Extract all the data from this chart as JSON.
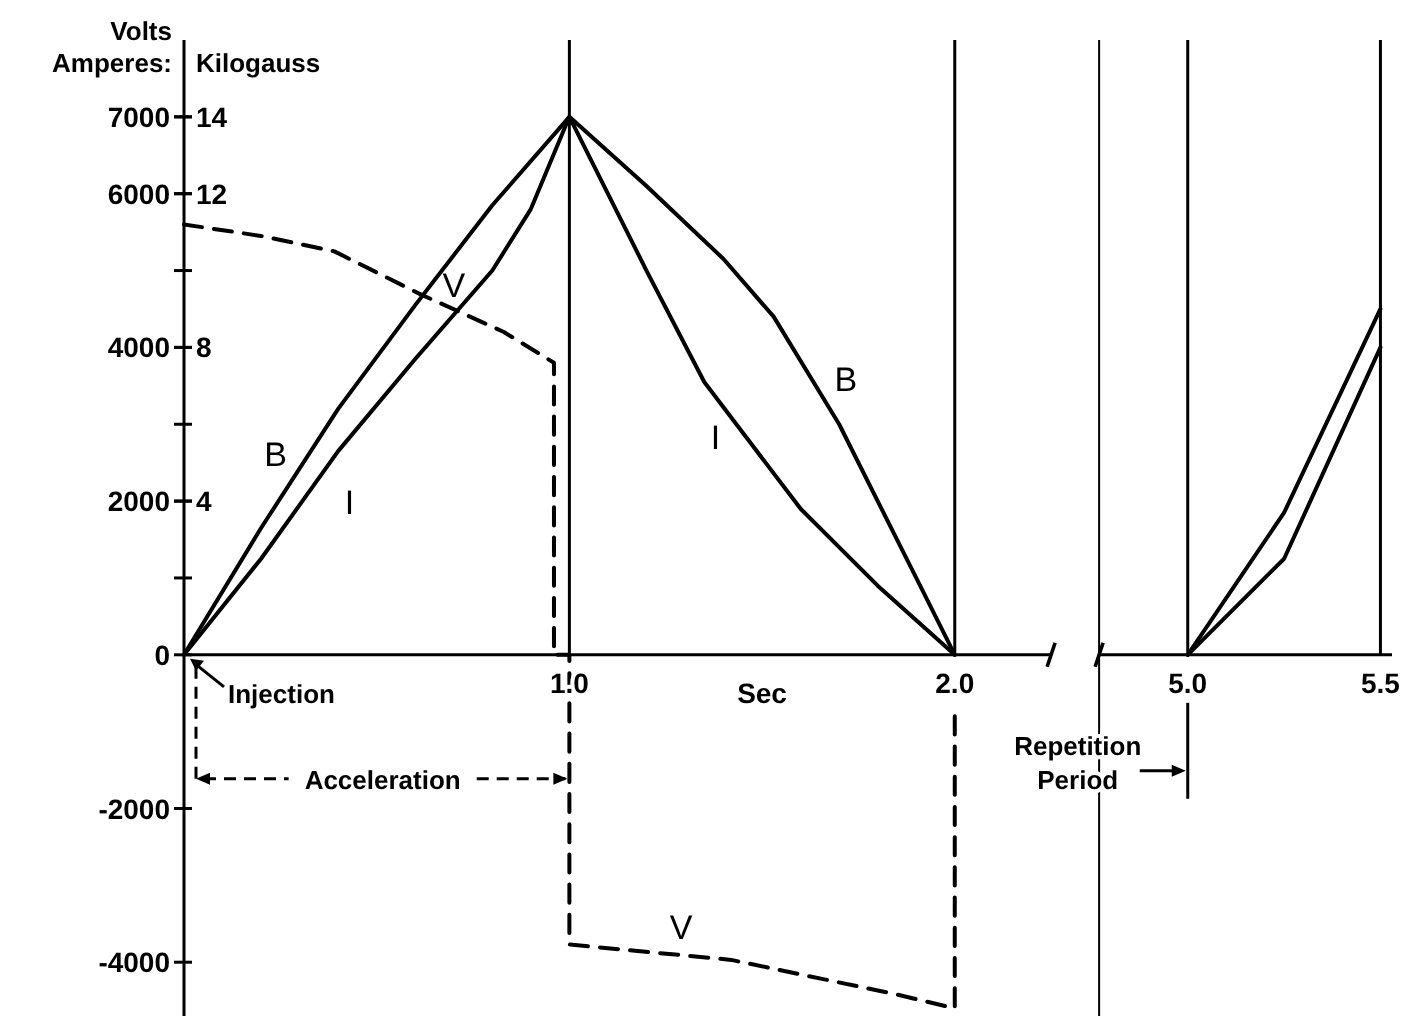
{
  "chart_data": [
    {
      "type": "line",
      "xlabel": "Sec",
      "ylabel": "Volts Amperes:",
      "y2label": "Kilogauss",
      "xlim": [
        0,
        2.25
      ],
      "xticks": [
        {
          "value": 1,
          "label": "1.0"
        },
        {
          "value": 2,
          "label": "2.0"
        }
      ],
      "ylim": [
        -4700,
        8000
      ],
      "yticks": [
        -4000,
        -2000,
        0,
        {
          "value": 1000,
          "label": null
        },
        2000,
        {
          "value": 3000,
          "label": null
        },
        4000,
        {
          "value": 5000,
          "label": null
        },
        6000,
        7000
      ],
      "y2lim": [
        -9.4,
        16
      ],
      "y2ticks": [
        4,
        8,
        12,
        14
      ],
      "marker": "none",
      "series": [
        {
          "name": "V",
          "color": "#000000",
          "line_style": "dashed",
          "x": [
            0,
            0.2,
            0.39,
            0.61,
            0.83,
            0.96,
            0.96,
            1,
            1,
            1.42,
            1.85,
            2,
            2
          ],
          "values": [
            5600,
            5450,
            5250,
            4700,
            4200,
            3800,
            0,
            0,
            -3770,
            -3970,
            -4420,
            -4600,
            -800
          ]
        },
        {
          "name": "B",
          "color": "#000000",
          "line_style": "solid",
          "axis": "y2",
          "x": [
            0,
            0.2,
            0.4,
            0.6,
            0.8,
            1,
            1.2,
            1.4,
            1.53,
            1.7,
            1.9,
            2
          ],
          "values": [
            0,
            3.3,
            6.4,
            9.1,
            11.7,
            14,
            12.2,
            10.3,
            8.8,
            6.0,
            2.0,
            0
          ]
        },
        {
          "name": "I",
          "color": "#000000",
          "line_style": "solid",
          "x": [
            0,
            0.2,
            0.4,
            0.6,
            0.8,
            0.9,
            1,
            1.2,
            1.35,
            1.6,
            1.8,
            2
          ],
          "values": [
            0,
            1250,
            2650,
            3850,
            5000,
            5800,
            7000,
            5000,
            3550,
            1900,
            900,
            0
          ]
        }
      ],
      "ref_lines": [
        {
          "axis": "x",
          "value": 1
        },
        {
          "axis": "x",
          "value": 2
        }
      ],
      "annotations": [
        {
          "text": "Injection",
          "x": 0,
          "y": 0
        },
        "Acceleration"
      ]
    },
    {
      "type": "line",
      "tick_labels": "x",
      "xlim": [
        4.77,
        5.53
      ],
      "xticks": [
        {
          "value": 5,
          "label": "5.0"
        },
        {
          "value": 5.5,
          "label": "5.5"
        }
      ],
      "ylim": [
        -4700,
        8000
      ],
      "y2lim": [
        -9.4,
        16
      ],
      "marker": "none",
      "series": [
        {
          "color": "#000000",
          "line_style": "solid",
          "axis": "y2",
          "x": [
            5,
            5.25,
            5.5
          ],
          "values": [
            0,
            3.7,
            9.0
          ]
        },
        {
          "color": "#000000",
          "line_style": "solid",
          "x": [
            5,
            5.25,
            5.5
          ],
          "values": [
            0,
            1250,
            4000
          ]
        }
      ],
      "ref_lines": [
        {
          "axis": "x",
          "value": 5
        },
        {
          "axis": "x",
          "value": 5.5
        }
      ],
      "annotations": [
        "Repetition Period"
      ]
    }
  ]
}
